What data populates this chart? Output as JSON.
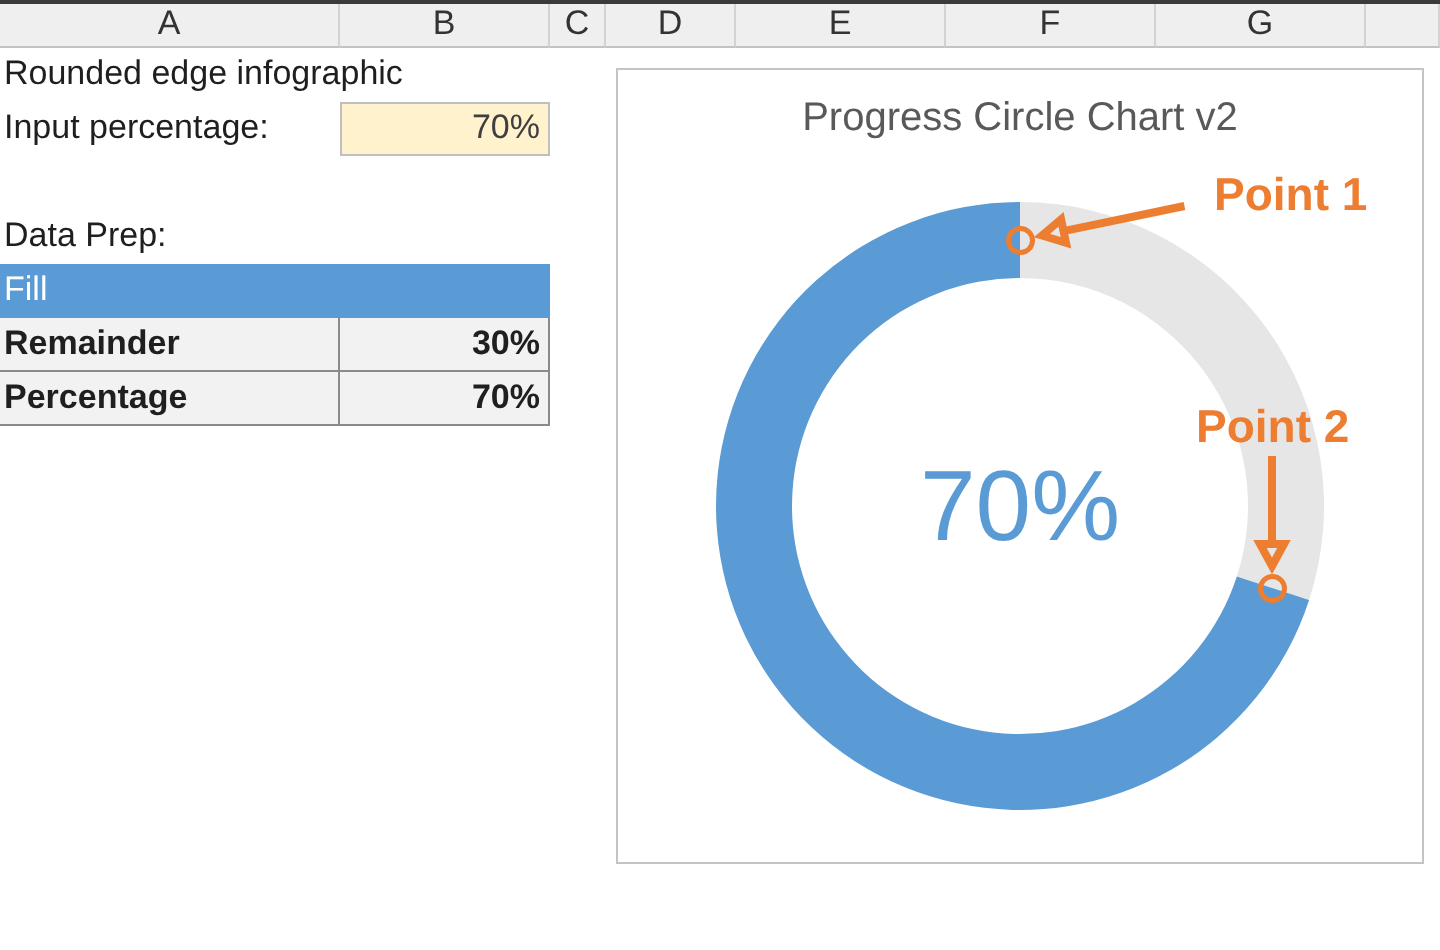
{
  "chart_data": {
    "type": "donut",
    "title": "Progress Circle Chart v2",
    "categories": [
      null,
      null
    ],
    "values": [
      30,
      70
    ],
    "colors": [
      "#e7e6e6",
      "#5b9bd5"
    ],
    "annotations": [
      "A",
      "B",
      "C",
      "D",
      "E",
      "F",
      "G",
      "Rounded edge infographic",
      "Input percentage:",
      "70%",
      "Data Prep:",
      "Fill",
      "Remainder",
      "30%",
      "Percentage",
      "70%",
      "70%",
      "Point 1",
      "Point 2"
    ]
  }
}
